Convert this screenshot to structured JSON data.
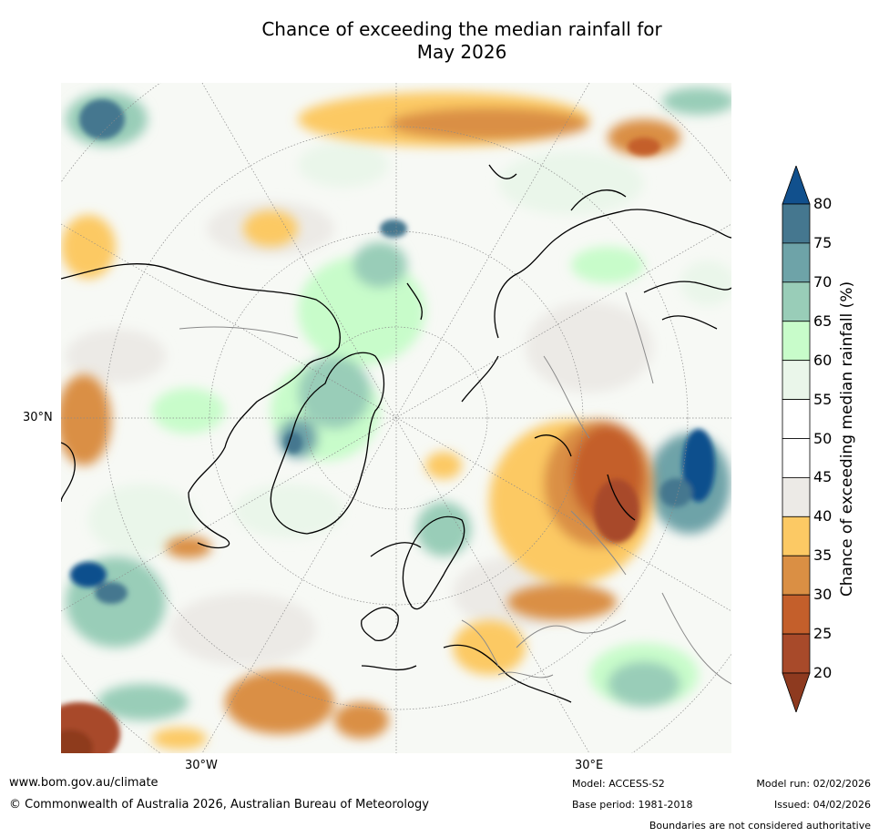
{
  "title_line1": "Chance of exceeding the median rainfall for",
  "title_line2": "May 2026",
  "map_labels": {
    "lat": "30°N",
    "lon_west": "30°W",
    "lon_east": "30°E"
  },
  "colorbar": {
    "label": "Chance of exceeding median rainfall (%)",
    "ticks": [
      "20",
      "25",
      "30",
      "35",
      "40",
      "45",
      "50",
      "55",
      "60",
      "65",
      "70",
      "75",
      "80"
    ],
    "colors": {
      "below20": "#8e3a1f",
      "b20_25": "#a84a2a",
      "b25_30": "#c45f2b",
      "b30_35": "#da8f44",
      "b35_40": "#fcc964",
      "b40_45": "#eceae6",
      "b45_50": "#ffffff",
      "b50_55": "#ffffff",
      "b55_60": "#eaf6ea",
      "b60_65": "#c8fcca",
      "b65_70": "#99cdb8",
      "b70_75": "#6ea3a8",
      "b75_80": "#45778f",
      "above80": "#11508d"
    }
  },
  "footer": {
    "website": "www.bom.gov.au/climate",
    "copyright": "© Commonwealth of Australia 2026, Australian Bureau of Meteorology",
    "model": "Model: ACCESS-S2",
    "base_period": "Base period: 1981-2018",
    "model_run": "Model run: 02/02/2026",
    "issued": "Issued: 04/02/2026",
    "boundaries": "Boundaries are not considered authoritative"
  }
}
